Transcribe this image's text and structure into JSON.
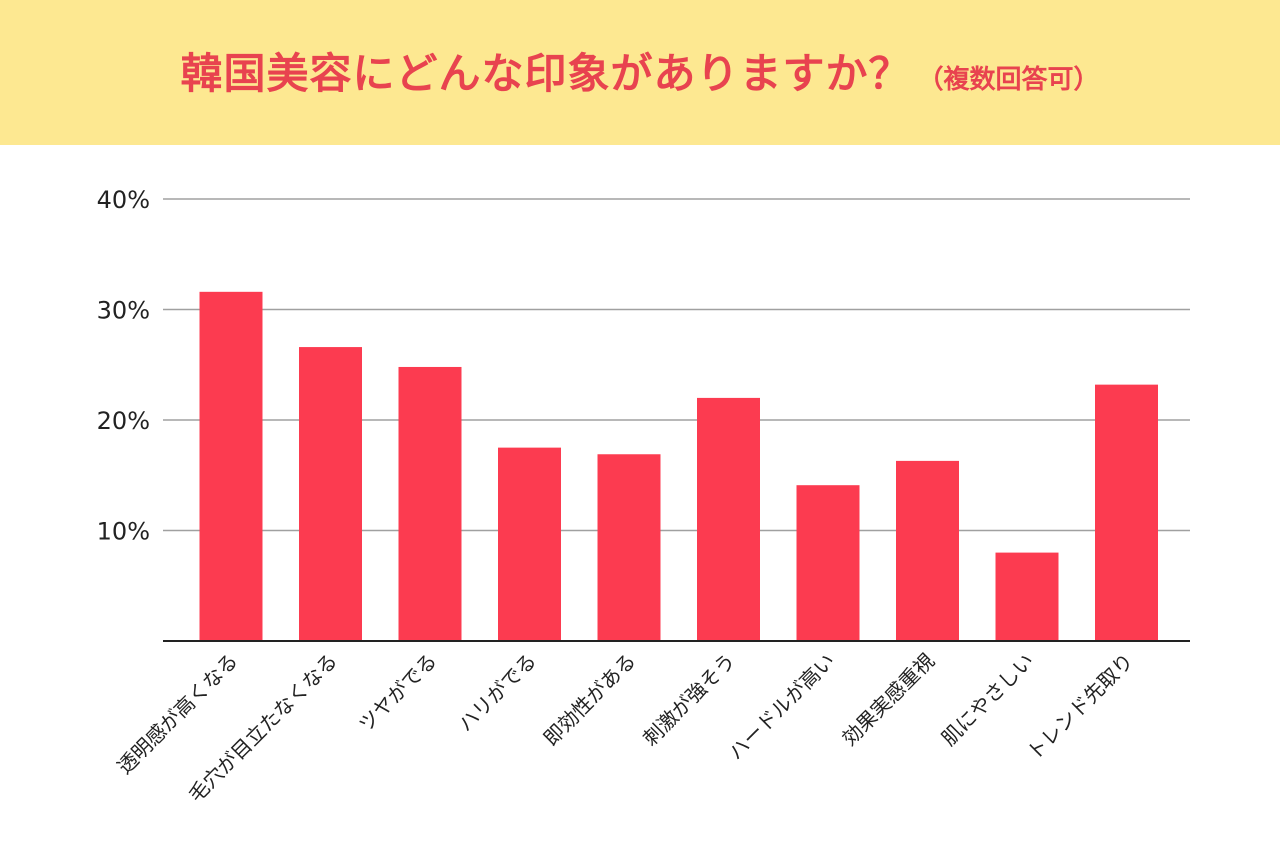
{
  "header": {
    "title": "韓国美容にどんな印象がありますか？",
    "subtitle": "（複数回答可）",
    "bg_color": "#fde891",
    "title_color": "#e8434f"
  },
  "chart_data": {
    "type": "bar",
    "categories": [
      "透明感が高くなる",
      "毛穴が目立たなくなる",
      "ツヤがでる",
      "ハリがでる",
      "即効性がある",
      "刺激が強そう",
      "ハードルが高い",
      "効果実感重視",
      "肌にやさしい",
      "トレンド先取り"
    ],
    "values": [
      31.6,
      26.6,
      24.8,
      17.5,
      16.9,
      22.0,
      14.1,
      16.3,
      8.0,
      23.2
    ],
    "ylim": [
      0,
      40
    ],
    "yticks": [
      10,
      20,
      30,
      40
    ],
    "ytick_labels": [
      "10%",
      "20%",
      "30%",
      "40%"
    ],
    "grid": true,
    "bar_color": "#fc3b50"
  }
}
